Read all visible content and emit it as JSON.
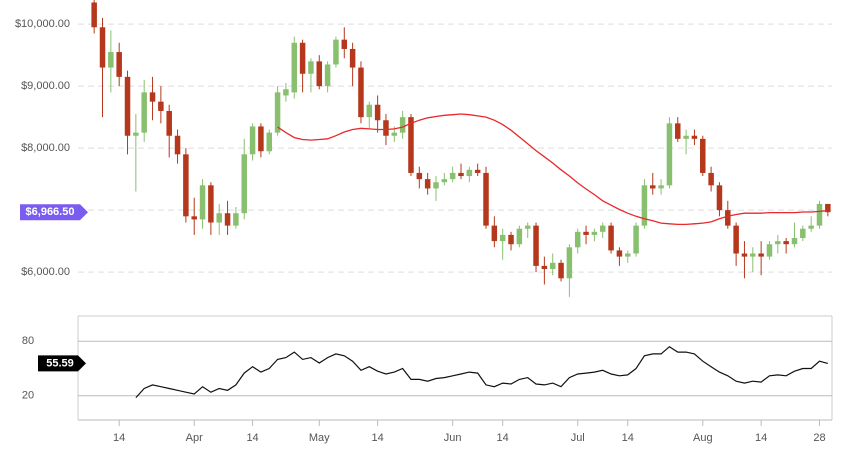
{
  "chart_data": {
    "type": "candlestick",
    "categories": [
      null,
      null,
      null,
      "14",
      null,
      null,
      null,
      null,
      null,
      null,
      null,
      null,
      "Apr",
      null,
      null,
      null,
      null,
      null,
      null,
      "14",
      null,
      null,
      null,
      null,
      null,
      null,
      null,
      "May",
      null,
      null,
      null,
      null,
      null,
      null,
      "14",
      null,
      null,
      null,
      null,
      null,
      null,
      null,
      null,
      "Jun",
      null,
      null,
      null,
      null,
      null,
      "14",
      null,
      null,
      null,
      null,
      null,
      null,
      null,
      null,
      "Jul",
      null,
      null,
      null,
      null,
      null,
      "14",
      null,
      null,
      null,
      null,
      null,
      null,
      null,
      null,
      "Aug",
      null,
      null,
      null,
      null,
      null,
      null,
      "14",
      null,
      null,
      null,
      null,
      null,
      null,
      "28",
      null
    ],
    "open": [
      10350,
      9950,
      9300,
      9550,
      9150,
      8200,
      8250,
      8900,
      8750,
      8600,
      8200,
      7900,
      6900,
      6850,
      7400,
      6800,
      6950,
      6750,
      6950,
      7900,
      8350,
      7950,
      8250,
      8850,
      8900,
      9700,
      9200,
      9400,
      9000,
      9350,
      9750,
      9600,
      9300,
      8500,
      8700,
      8450,
      8200,
      8250,
      8500,
      7600,
      7500,
      7350,
      7450,
      7500,
      7600,
      7550,
      7650,
      7600,
      6750,
      6500,
      6600,
      6450,
      6700,
      6750,
      6100,
      6050,
      6150,
      5900,
      6400,
      6650,
      6600,
      6650,
      6750,
      6350,
      6250,
      6300,
      6750,
      7400,
      7350,
      7400,
      8400,
      8150,
      8200,
      8150,
      7600,
      7400,
      7000,
      6750,
      6300,
      6250,
      6300,
      6250,
      6450,
      6500,
      6450,
      6550,
      6700,
      6750,
      7100
    ],
    "high": [
      10390,
      10100,
      9900,
      9700,
      9250,
      8550,
      9100,
      9150,
      9000,
      8700,
      8300,
      8000,
      7200,
      7500,
      7450,
      7100,
      7150,
      7050,
      8150,
      8400,
      8400,
      8300,
      9000,
      9050,
      9800,
      9750,
      9450,
      9500,
      9400,
      9800,
      9950,
      9700,
      9400,
      8750,
      8850,
      8550,
      8350,
      8600,
      8550,
      7700,
      7600,
      7550,
      7600,
      7700,
      7750,
      7700,
      7750,
      7700,
      6900,
      6700,
      6650,
      6750,
      6800,
      6800,
      6250,
      6300,
      6200,
      6450,
      6700,
      6750,
      6700,
      6800,
      6800,
      6400,
      6350,
      6800,
      7500,
      7600,
      7500,
      8500,
      8500,
      8300,
      8300,
      8200,
      7700,
      7450,
      7150,
      6800,
      6500,
      6400,
      6500,
      6500,
      6600,
      6550,
      6800,
      6750,
      6900,
      7150,
      7100
    ],
    "low": [
      9850,
      8500,
      8900,
      9000,
      7900,
      7300,
      8100,
      8450,
      8400,
      7850,
      7750,
      6800,
      6600,
      6700,
      6600,
      6600,
      6600,
      6700,
      6850,
      7800,
      7850,
      7900,
      8200,
      8750,
      8800,
      8900,
      8900,
      8950,
      8900,
      9300,
      9450,
      9000,
      8400,
      8300,
      8250,
      8050,
      8100,
      8150,
      7550,
      7350,
      7250,
      7150,
      7400,
      7450,
      7500,
      7450,
      7550,
      6700,
      6400,
      6200,
      6350,
      6400,
      6550,
      6000,
      5800,
      5950,
      5850,
      5600,
      6300,
      6450,
      6500,
      6550,
      6300,
      6100,
      6150,
      6250,
      6700,
      7250,
      7250,
      7350,
      8100,
      7900,
      8050,
      7550,
      7300,
      6900,
      6700,
      6100,
      5900,
      6000,
      5950,
      6200,
      6300,
      6300,
      6400,
      6500,
      6650,
      6700,
      6900
    ],
    "close": [
      9950,
      9300,
      9550,
      9150,
      8200,
      8250,
      8900,
      8750,
      8600,
      8200,
      7900,
      6900,
      6850,
      7400,
      6800,
      6950,
      6750,
      6950,
      7900,
      8350,
      7950,
      8250,
      8900,
      8950,
      9700,
      9200,
      9400,
      9000,
      9350,
      9750,
      9600,
      9300,
      8500,
      8700,
      8450,
      8200,
      8250,
      8500,
      7600,
      7500,
      7350,
      7450,
      7500,
      7600,
      7550,
      7650,
      7600,
      6750,
      6500,
      6600,
      6450,
      6700,
      6750,
      6100,
      6050,
      6150,
      5900,
      6400,
      6650,
      6600,
      6650,
      6750,
      6350,
      6250,
      6300,
      6750,
      7400,
      7350,
      7400,
      8400,
      8150,
      8200,
      8150,
      7600,
      7400,
      7000,
      6750,
      6300,
      6250,
      6300,
      6250,
      6450,
      6500,
      6450,
      6550,
      6700,
      6750,
      7100,
      6966.5
    ],
    "up_color": "#88c070",
    "down_color": "#b5381c",
    "price_tag": {
      "value": 6966.5,
      "label": "$6,966.50",
      "color": "#7b5cf0"
    },
    "moving_average": {
      "color": "#e8282c",
      "values": [
        null,
        null,
        null,
        null,
        null,
        null,
        null,
        null,
        null,
        null,
        null,
        null,
        null,
        null,
        null,
        null,
        null,
        null,
        null,
        null,
        null,
        null,
        8340,
        8250,
        8170,
        8140,
        8130,
        8140,
        8150,
        8200,
        8260,
        8300,
        8320,
        8310,
        8300,
        8300,
        8310,
        8340,
        8400,
        8450,
        8490,
        8510,
        8530,
        8540,
        8550,
        8540,
        8520,
        8500,
        8450,
        8380,
        8290,
        8180,
        8070,
        7960,
        7860,
        7760,
        7650,
        7550,
        7440,
        7340,
        7250,
        7150,
        7080,
        7010,
        6950,
        6900,
        6860,
        6830,
        6790,
        6780,
        6770,
        6770,
        6780,
        6790,
        6810,
        6860,
        6900,
        6930,
        6950,
        6950,
        6950,
        6960,
        6960,
        6960,
        6960,
        6970,
        6970,
        6980,
        6990
      ]
    },
    "ylim": [
      5550,
      10390
    ],
    "yticks": [
      {
        "value": 6000,
        "label": "$6,000.00"
      },
      {
        "value": 7000,
        "label": "$7,000.00"
      },
      {
        "value": 8000,
        "label": "$8,000.00"
      },
      {
        "value": 9000,
        "label": "$9,000.00"
      },
      {
        "value": 10000,
        "label": "$10,000.00"
      }
    ],
    "grid": true,
    "indicator": {
      "type": "line",
      "color": "#111111",
      "values": [
        null,
        null,
        null,
        null,
        null,
        18,
        28,
        32,
        30,
        28,
        26,
        24,
        22,
        30,
        24,
        28,
        26,
        32,
        45,
        52,
        46,
        50,
        60,
        62,
        68,
        60,
        62,
        56,
        62,
        66,
        64,
        58,
        48,
        52,
        47,
        44,
        46,
        50,
        38,
        38,
        36,
        39,
        40,
        42,
        44,
        46,
        45,
        32,
        30,
        34,
        33,
        38,
        40,
        33,
        32,
        34,
        30,
        40,
        44,
        45,
        46,
        48,
        44,
        42,
        43,
        50,
        64,
        66,
        66,
        74,
        68,
        68,
        66,
        58,
        52,
        46,
        42,
        36,
        34,
        36,
        35,
        42,
        43,
        42,
        47,
        50,
        50,
        58,
        55.59
      ],
      "ylim": [
        0,
        100
      ],
      "yticks": [
        20,
        80
      ],
      "tag": {
        "value": 55.59,
        "label": "55.59",
        "color": "#000000"
      }
    }
  }
}
